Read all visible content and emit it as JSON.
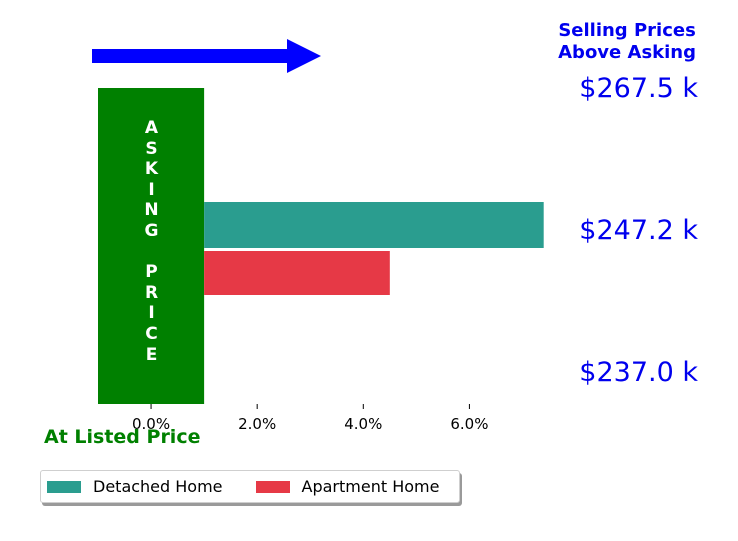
{
  "chart_data": {
    "type": "bar",
    "orientation": "horizontal",
    "series": [
      {
        "name": "Detached Home",
        "value": 6.4,
        "color": "#2a9d8f"
      },
      {
        "name": "Apartment Home",
        "value": 3.5,
        "color": "#e63946"
      }
    ],
    "xlim": [
      -1,
      7.5
    ],
    "xticks": [
      0,
      2,
      4,
      6
    ],
    "xtick_labels": [
      "0.0%",
      "2.0%",
      "4.0%",
      "6.0%"
    ],
    "asking_band": {
      "from": -1,
      "to": 1,
      "color": "#008000",
      "label": "A\nS\nK\nI\nN\nG\n\nP\nR\nI\nC\nE"
    },
    "arrow_color": "#0000ff",
    "annotations": {
      "above_asking_title": [
        "Selling Prices",
        "Above Asking"
      ],
      "prices": [
        "$267.5 k",
        "$247.2 k",
        "$237.0 k"
      ],
      "at_listed_price": "At Listed Price"
    },
    "legend": {
      "placement": "bottom-left",
      "shadow": true
    }
  }
}
